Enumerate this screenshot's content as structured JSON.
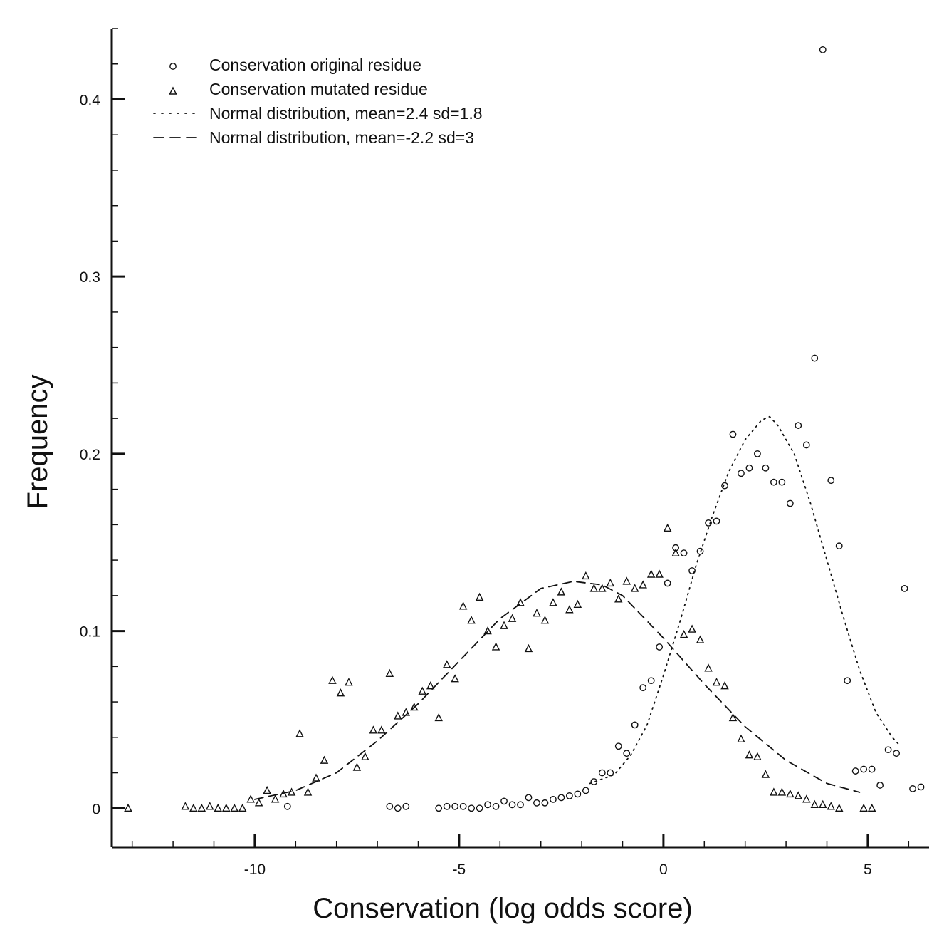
{
  "chart_data": {
    "type": "scatter",
    "xlabel": "Conservation (log odds score)",
    "ylabel": "Frequency",
    "xlim": [
      -13.5,
      6.5
    ],
    "ylim": [
      -0.022,
      0.44
    ],
    "x_ticks": [
      -10,
      -5,
      0,
      5
    ],
    "x_tick_labels": [
      "-10",
      "-5",
      "0",
      "5"
    ],
    "y_ticks": [
      0,
      0.1,
      0.2,
      0.3,
      0.4
    ],
    "y_tick_labels": [
      "0",
      "0.1",
      "0.2",
      "0.3",
      "0.4"
    ],
    "grid": false,
    "legend_position": "top-left",
    "legend": [
      {
        "label": "Conservation original residue",
        "marker": "circle"
      },
      {
        "label": "Conservation mutated residue",
        "marker": "triangle"
      },
      {
        "label": "Normal distribution,  mean=2.4 sd=1.8",
        "line": "dotted"
      },
      {
        "label": "Normal distribution,  mean=-2.2 sd=3",
        "line": "dashed"
      }
    ],
    "series": [
      {
        "name": "Conservation original residue",
        "marker": "circle",
        "points": [
          [
            -9.2,
            0.001
          ],
          [
            -6.7,
            0.001
          ],
          [
            -6.5,
            0.0
          ],
          [
            -6.3,
            0.001
          ],
          [
            -5.5,
            0.0
          ],
          [
            -5.3,
            0.001
          ],
          [
            -5.1,
            0.001
          ],
          [
            -4.9,
            0.001
          ],
          [
            -4.7,
            0.0
          ],
          [
            -4.5,
            0.0
          ],
          [
            -4.3,
            0.002
          ],
          [
            -4.1,
            0.001
          ],
          [
            -3.9,
            0.004
          ],
          [
            -3.7,
            0.002
          ],
          [
            -3.5,
            0.002
          ],
          [
            -3.3,
            0.006
          ],
          [
            -3.1,
            0.003
          ],
          [
            -2.9,
            0.003
          ],
          [
            -2.7,
            0.005
          ],
          [
            -2.5,
            0.006
          ],
          [
            -2.3,
            0.007
          ],
          [
            -2.1,
            0.008
          ],
          [
            -1.9,
            0.01
          ],
          [
            -1.7,
            0.015
          ],
          [
            -1.5,
            0.02
          ],
          [
            -1.3,
            0.02
          ],
          [
            -1.1,
            0.035
          ],
          [
            -0.9,
            0.031
          ],
          [
            -0.7,
            0.047
          ],
          [
            -0.5,
            0.068
          ],
          [
            -0.3,
            0.072
          ],
          [
            -0.1,
            0.091
          ],
          [
            0.1,
            0.127
          ],
          [
            0.3,
            0.147
          ],
          [
            0.5,
            0.144
          ],
          [
            0.7,
            0.134
          ],
          [
            0.9,
            0.145
          ],
          [
            1.1,
            0.161
          ],
          [
            1.3,
            0.162
          ],
          [
            1.5,
            0.182
          ],
          [
            1.7,
            0.211
          ],
          [
            1.9,
            0.189
          ],
          [
            2.1,
            0.192
          ],
          [
            2.3,
            0.2
          ],
          [
            2.5,
            0.192
          ],
          [
            2.7,
            0.184
          ],
          [
            2.9,
            0.184
          ],
          [
            3.1,
            0.172
          ],
          [
            3.3,
            0.216
          ],
          [
            3.5,
            0.205
          ],
          [
            3.7,
            0.254
          ],
          [
            3.9,
            0.428
          ],
          [
            4.1,
            0.185
          ],
          [
            4.3,
            0.148
          ],
          [
            4.5,
            0.072
          ],
          [
            4.7,
            0.021
          ],
          [
            4.9,
            0.022
          ],
          [
            5.1,
            0.022
          ],
          [
            5.3,
            0.013
          ],
          [
            5.5,
            0.033
          ],
          [
            5.7,
            0.031
          ],
          [
            5.9,
            0.124
          ],
          [
            6.1,
            0.011
          ],
          [
            6.3,
            0.012
          ]
        ]
      },
      {
        "name": "Conservation mutated residue",
        "marker": "triangle",
        "points": [
          [
            -13.1,
            0.0
          ],
          [
            -11.7,
            0.001
          ],
          [
            -11.5,
            0.0
          ],
          [
            -11.3,
            0.0
          ],
          [
            -11.1,
            0.001
          ],
          [
            -10.9,
            0.0
          ],
          [
            -10.7,
            0.0
          ],
          [
            -10.5,
            0.0
          ],
          [
            -10.3,
            0.0
          ],
          [
            -10.1,
            0.005
          ],
          [
            -9.9,
            0.003
          ],
          [
            -9.7,
            0.01
          ],
          [
            -9.5,
            0.005
          ],
          [
            -9.3,
            0.008
          ],
          [
            -9.1,
            0.009
          ],
          [
            -8.9,
            0.042
          ],
          [
            -8.7,
            0.009
          ],
          [
            -8.5,
            0.017
          ],
          [
            -8.3,
            0.027
          ],
          [
            -8.1,
            0.072
          ],
          [
            -7.9,
            0.065
          ],
          [
            -7.7,
            0.071
          ],
          [
            -7.5,
            0.023
          ],
          [
            -7.3,
            0.029
          ],
          [
            -7.1,
            0.044
          ],
          [
            -6.9,
            0.044
          ],
          [
            -6.7,
            0.076
          ],
          [
            -6.5,
            0.052
          ],
          [
            -6.3,
            0.054
          ],
          [
            -6.1,
            0.057
          ],
          [
            -5.9,
            0.066
          ],
          [
            -5.7,
            0.069
          ],
          [
            -5.5,
            0.051
          ],
          [
            -5.3,
            0.081
          ],
          [
            -5.1,
            0.073
          ],
          [
            -4.9,
            0.114
          ],
          [
            -4.7,
            0.106
          ],
          [
            -4.5,
            0.119
          ],
          [
            -4.3,
            0.1
          ],
          [
            -4.1,
            0.091
          ],
          [
            -3.9,
            0.103
          ],
          [
            -3.7,
            0.107
          ],
          [
            -3.5,
            0.116
          ],
          [
            -3.3,
            0.09
          ],
          [
            -3.1,
            0.11
          ],
          [
            -2.9,
            0.106
          ],
          [
            -2.7,
            0.116
          ],
          [
            -2.5,
            0.122
          ],
          [
            -2.3,
            0.112
          ],
          [
            -2.1,
            0.115
          ],
          [
            -1.9,
            0.131
          ],
          [
            -1.7,
            0.124
          ],
          [
            -1.5,
            0.124
          ],
          [
            -1.3,
            0.127
          ],
          [
            -1.1,
            0.118
          ],
          [
            -0.9,
            0.128
          ],
          [
            -0.7,
            0.124
          ],
          [
            -0.5,
            0.126
          ],
          [
            -0.3,
            0.132
          ],
          [
            -0.1,
            0.132
          ],
          [
            0.1,
            0.158
          ],
          [
            0.3,
            0.144
          ],
          [
            0.5,
            0.098
          ],
          [
            0.7,
            0.101
          ],
          [
            0.9,
            0.095
          ],
          [
            1.1,
            0.079
          ],
          [
            1.3,
            0.071
          ],
          [
            1.5,
            0.069
          ],
          [
            1.7,
            0.051
          ],
          [
            1.9,
            0.039
          ],
          [
            2.1,
            0.03
          ],
          [
            2.3,
            0.029
          ],
          [
            2.5,
            0.019
          ],
          [
            2.7,
            0.009
          ],
          [
            2.9,
            0.009
          ],
          [
            3.1,
            0.008
          ],
          [
            3.3,
            0.007
          ],
          [
            3.5,
            0.005
          ],
          [
            3.7,
            0.002
          ],
          [
            3.9,
            0.002
          ],
          [
            4.1,
            0.001
          ],
          [
            4.3,
            0.0
          ],
          [
            4.9,
            0.0
          ],
          [
            5.1,
            0.0
          ]
        ]
      },
      {
        "name": "Normal distribution,  mean=2.4 sd=1.8",
        "line": "dotted",
        "points": [
          [
            -1.8,
            0.014
          ],
          [
            -1.2,
            0.019
          ],
          [
            -0.8,
            0.03
          ],
          [
            -0.4,
            0.047
          ],
          [
            0.0,
            0.075
          ],
          [
            0.4,
            0.105
          ],
          [
            0.8,
            0.137
          ],
          [
            1.2,
            0.165
          ],
          [
            1.6,
            0.19
          ],
          [
            2.0,
            0.208
          ],
          [
            2.4,
            0.219
          ],
          [
            2.6,
            0.221
          ],
          [
            2.8,
            0.216
          ],
          [
            3.2,
            0.2
          ],
          [
            3.6,
            0.172
          ],
          [
            4.0,
            0.14
          ],
          [
            4.4,
            0.108
          ],
          [
            4.8,
            0.078
          ],
          [
            5.2,
            0.054
          ],
          [
            5.6,
            0.04
          ],
          [
            5.8,
            0.035
          ]
        ]
      },
      {
        "name": "Normal distribution,  mean=-2.2 sd=3",
        "line": "dashed",
        "points": [
          [
            -10.0,
            0.005
          ],
          [
            -9.0,
            0.01
          ],
          [
            -8.0,
            0.02
          ],
          [
            -7.0,
            0.038
          ],
          [
            -6.0,
            0.059
          ],
          [
            -5.0,
            0.083
          ],
          [
            -4.0,
            0.107
          ],
          [
            -3.0,
            0.124
          ],
          [
            -2.2,
            0.128
          ],
          [
            -1.5,
            0.126
          ],
          [
            -1.0,
            0.12
          ],
          [
            0.0,
            0.096
          ],
          [
            1.0,
            0.07
          ],
          [
            2.0,
            0.046
          ],
          [
            3.0,
            0.027
          ],
          [
            4.0,
            0.014
          ],
          [
            4.8,
            0.009
          ]
        ]
      }
    ]
  }
}
